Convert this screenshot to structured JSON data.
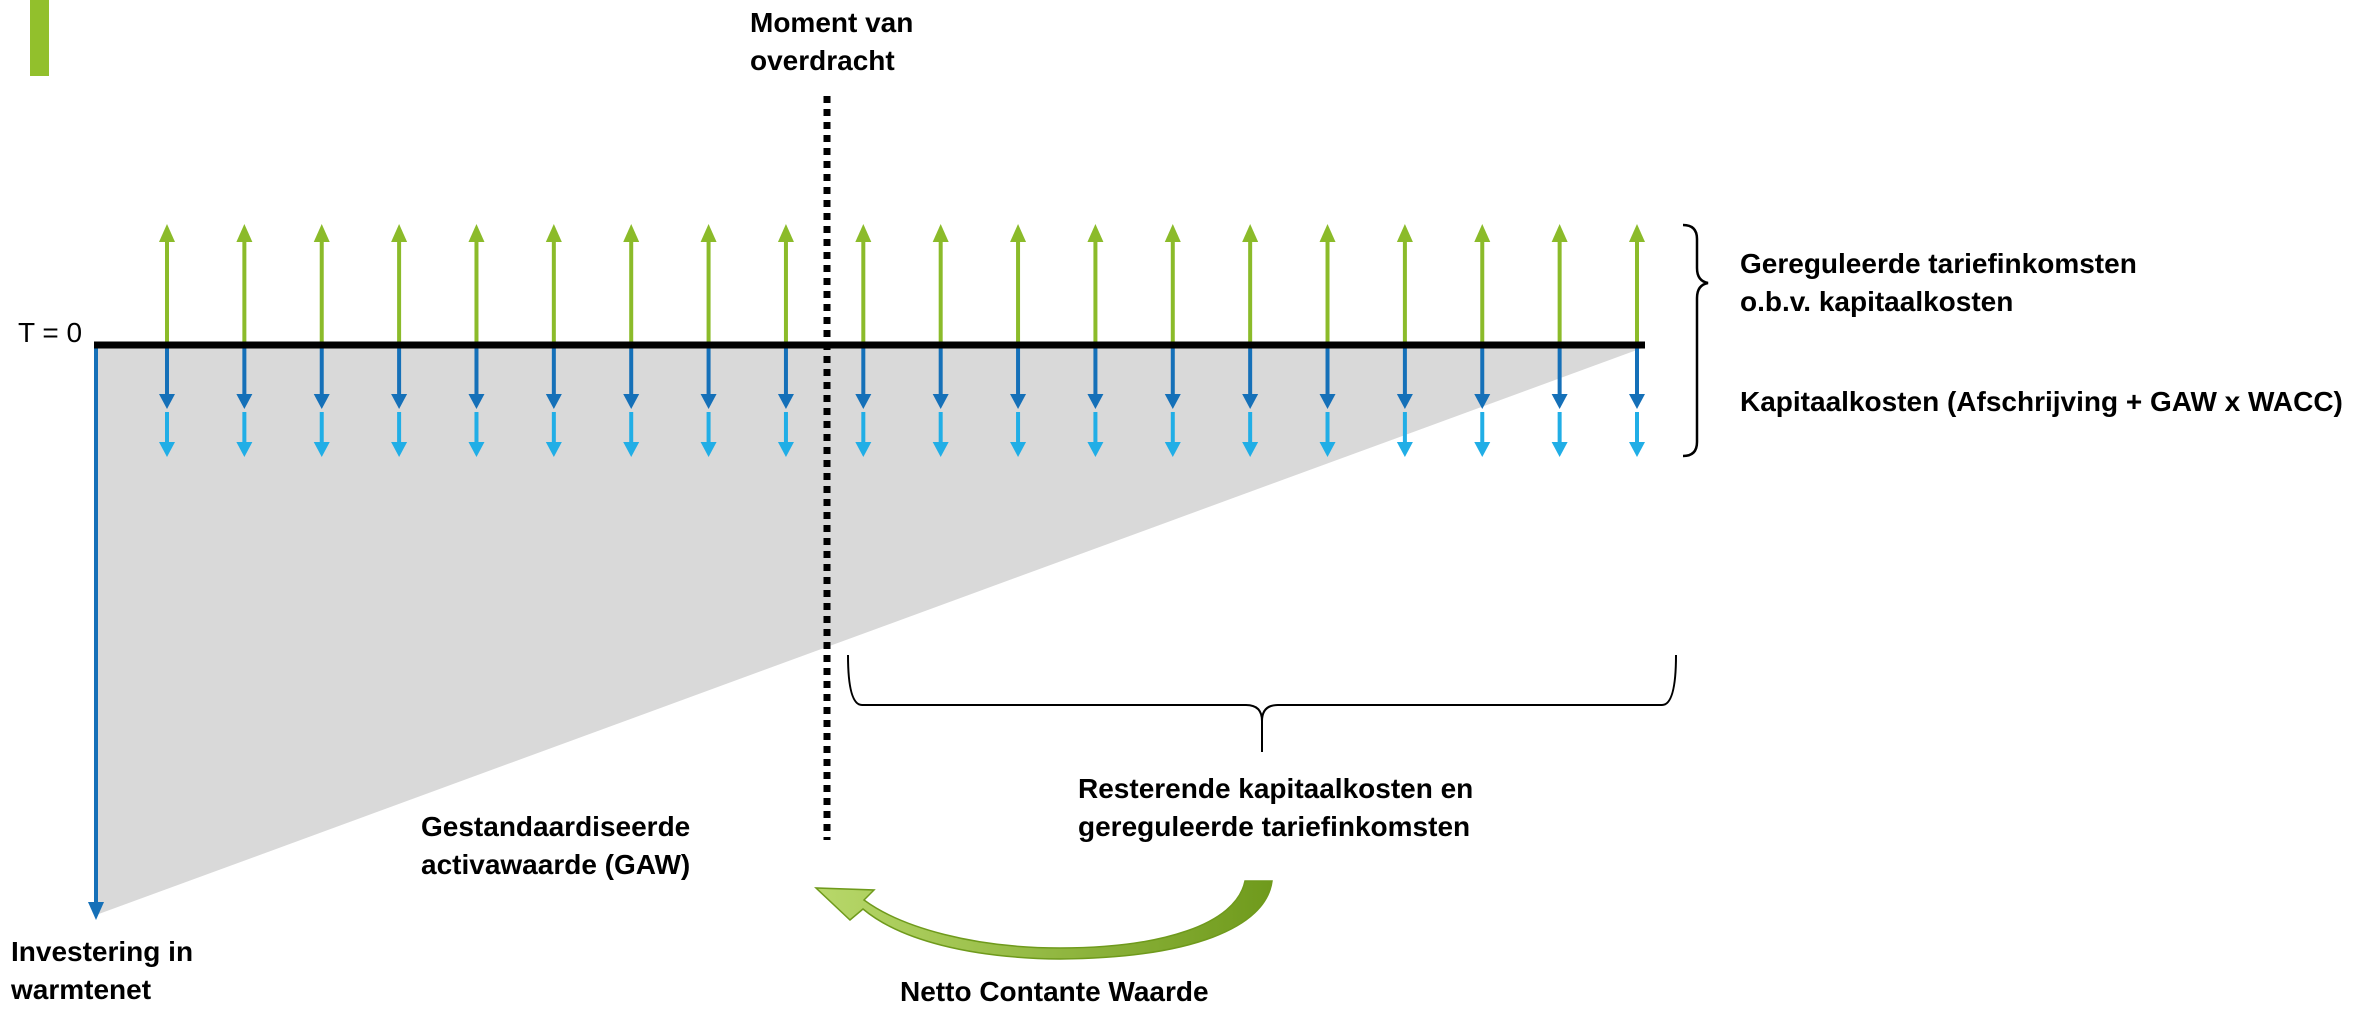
{
  "labels": {
    "moment_line1": "Moment van",
    "moment_line2": "overdracht",
    "t0": "T = 0",
    "income_line1": "Gereguleerde tariefinkomsten",
    "income_line2": "o.b.v. kapitaalkosten",
    "costs": "Kapitaalkosten (Afschrijving + GAW x WACC)",
    "remaining_line1": "Resterende kapitaalkosten en",
    "remaining_line2": "gereguleerde tariefinkomsten",
    "gaw_line1": "Gestandaardiseerde",
    "gaw_line2": "activawaarde (GAW)",
    "investment_line1": "Investering in",
    "investment_line2": "warmtenet",
    "npv": "Netto Contante Waarde"
  },
  "periods": 20,
  "colors": {
    "accent_bar": "#92c02c",
    "income_arrow": "#8bbb2a",
    "cost_arrow_dark": "#1570b8",
    "cost_arrow_light": "#21aee6",
    "gaw_fill": "#d9d9d9",
    "timeline": "#000000",
    "investment_arrow": "#1570b8",
    "npv_arrow": "#7fae22"
  },
  "icons": {
    "npv_arrow": "curved-arrow-icon",
    "brace": "curly-brace-icon"
  }
}
